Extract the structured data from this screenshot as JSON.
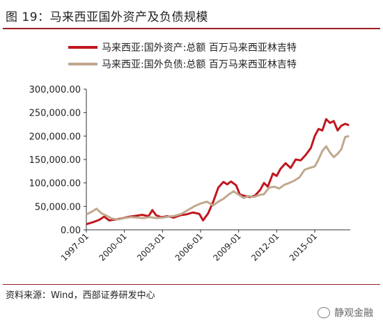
{
  "title": "图 19：马来西亚国外资产及负债规模",
  "source": "资料来源：Wind，西部证券研发中心",
  "watermark": "静观金融",
  "chart_data": {
    "type": "line",
    "ylim": [
      0,
      300000
    ],
    "yticks": [
      "0.00",
      "50,000.00",
      "100,000.00",
      "150,000.00",
      "200,000.00",
      "250,000.00",
      "300,000.00"
    ],
    "xticks": [
      "1997-01",
      "2000-01",
      "2003-01",
      "2006-01",
      "2009-01",
      "2012-01",
      "2015-01"
    ],
    "x_start": 1997.0,
    "x_end": 2017.8,
    "grid": false,
    "legend_position": "top-left",
    "series": [
      {
        "name": "马来西亚:国外资产:总额 百万马来西亚林吉特",
        "color": "#c0161f",
        "points": [
          [
            1997.0,
            12000
          ],
          [
            1997.5,
            16000
          ],
          [
            1998.0,
            21000
          ],
          [
            1998.4,
            28000
          ],
          [
            1998.8,
            20000
          ],
          [
            1999.3,
            22000
          ],
          [
            1999.9,
            25000
          ],
          [
            2000.4,
            28000
          ],
          [
            2000.9,
            30000
          ],
          [
            2001.4,
            32000
          ],
          [
            2001.9,
            29000
          ],
          [
            2002.2,
            42000
          ],
          [
            2002.5,
            31000
          ],
          [
            2002.9,
            27000
          ],
          [
            2003.4,
            29000
          ],
          [
            2003.9,
            26000
          ],
          [
            2004.4,
            31000
          ],
          [
            2004.9,
            33000
          ],
          [
            2005.4,
            37000
          ],
          [
            2005.9,
            34000
          ],
          [
            2006.2,
            20000
          ],
          [
            2006.6,
            35000
          ],
          [
            2007.0,
            60000
          ],
          [
            2007.4,
            90000
          ],
          [
            2007.8,
            102000
          ],
          [
            2008.1,
            97000
          ],
          [
            2008.4,
            103000
          ],
          [
            2008.8,
            95000
          ],
          [
            2009.1,
            75000
          ],
          [
            2009.5,
            72000
          ],
          [
            2009.9,
            70000
          ],
          [
            2010.3,
            73000
          ],
          [
            2010.7,
            85000
          ],
          [
            2011.0,
            100000
          ],
          [
            2011.3,
            92000
          ],
          [
            2011.7,
            120000
          ],
          [
            2012.0,
            115000
          ],
          [
            2012.3,
            130000
          ],
          [
            2012.7,
            142000
          ],
          [
            2013.1,
            132000
          ],
          [
            2013.5,
            150000
          ],
          [
            2013.9,
            148000
          ],
          [
            2014.3,
            160000
          ],
          [
            2014.7,
            175000
          ],
          [
            2015.0,
            200000
          ],
          [
            2015.3,
            215000
          ],
          [
            2015.6,
            212000
          ],
          [
            2015.9,
            236000
          ],
          [
            2016.2,
            228000
          ],
          [
            2016.5,
            232000
          ],
          [
            2016.8,
            212000
          ],
          [
            2017.1,
            222000
          ],
          [
            2017.4,
            226000
          ],
          [
            2017.7,
            223000
          ]
        ]
      },
      {
        "name": "马来西亚:国外负债:总额 百万马来西亚林吉特",
        "color": "#c0a88e",
        "points": [
          [
            1997.0,
            33000
          ],
          [
            1997.4,
            38000
          ],
          [
            1997.8,
            45000
          ],
          [
            1998.2,
            35000
          ],
          [
            1998.6,
            30000
          ],
          [
            1999.0,
            24000
          ],
          [
            1999.5,
            22000
          ],
          [
            2000.0,
            25000
          ],
          [
            2000.5,
            27000
          ],
          [
            2001.0,
            26000
          ],
          [
            2001.5,
            25000
          ],
          [
            2002.0,
            27000
          ],
          [
            2002.5,
            25000
          ],
          [
            2003.0,
            26000
          ],
          [
            2003.5,
            28000
          ],
          [
            2004.0,
            30000
          ],
          [
            2004.5,
            34000
          ],
          [
            2005.0,
            42000
          ],
          [
            2005.5,
            50000
          ],
          [
            2006.0,
            56000
          ],
          [
            2006.5,
            60000
          ],
          [
            2007.0,
            52000
          ],
          [
            2007.4,
            60000
          ],
          [
            2007.8,
            66000
          ],
          [
            2008.2,
            75000
          ],
          [
            2008.6,
            82000
          ],
          [
            2009.0,
            75000
          ],
          [
            2009.4,
            68000
          ],
          [
            2009.8,
            72000
          ],
          [
            2010.2,
            70000
          ],
          [
            2010.6,
            74000
          ],
          [
            2011.0,
            76000
          ],
          [
            2011.4,
            90000
          ],
          [
            2011.8,
            92000
          ],
          [
            2012.2,
            88000
          ],
          [
            2012.6,
            96000
          ],
          [
            2013.0,
            100000
          ],
          [
            2013.4,
            105000
          ],
          [
            2013.8,
            112000
          ],
          [
            2014.2,
            128000
          ],
          [
            2014.6,
            132000
          ],
          [
            2015.0,
            135000
          ],
          [
            2015.3,
            150000
          ],
          [
            2015.6,
            168000
          ],
          [
            2015.9,
            178000
          ],
          [
            2016.2,
            165000
          ],
          [
            2016.5,
            155000
          ],
          [
            2016.8,
            162000
          ],
          [
            2017.1,
            172000
          ],
          [
            2017.4,
            198000
          ],
          [
            2017.7,
            200000
          ]
        ]
      }
    ]
  }
}
